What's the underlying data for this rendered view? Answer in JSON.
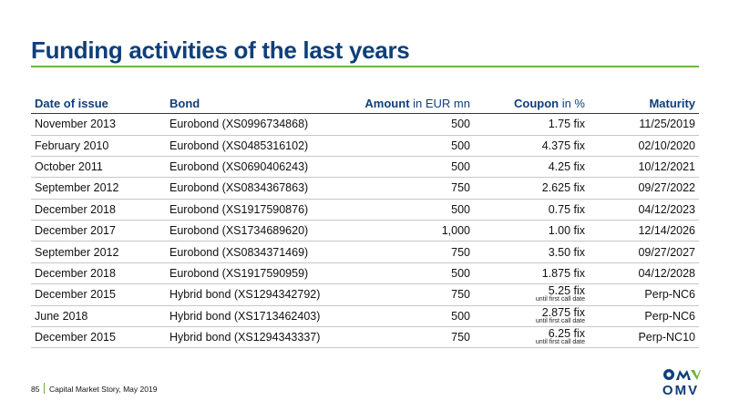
{
  "title": "Funding activities of the last years",
  "headers": {
    "date": "Date of issue",
    "bond": "Bond",
    "amount": "Amount",
    "amount_unit": " in EUR mn",
    "coupon": "Coupon",
    "coupon_unit": " in %",
    "maturity": "Maturity"
  },
  "rows": [
    {
      "date": "November 2013",
      "bond": "Eurobond (XS0996734868)",
      "amount": "500",
      "coupon": "1.75 fix",
      "note": "",
      "maturity": "11/25/2019"
    },
    {
      "date": "February 2010",
      "bond": "Eurobond (XS0485316102)",
      "amount": "500",
      "coupon": "4.375 fix",
      "note": "",
      "maturity": "02/10/2020"
    },
    {
      "date": "October 2011",
      "bond": "Eurobond (XS0690406243)",
      "amount": "500",
      "coupon": "4.25 fix",
      "note": "",
      "maturity": "10/12/2021"
    },
    {
      "date": "September 2012",
      "bond": "Eurobond (XS0834367863)",
      "amount": "750",
      "coupon": "2.625 fix",
      "note": "",
      "maturity": "09/27/2022"
    },
    {
      "date": "December 2018",
      "bond": "Eurobond (XS1917590876)",
      "amount": "500",
      "coupon": "0.75 fix",
      "note": "",
      "maturity": "04/12/2023"
    },
    {
      "date": "December 2017",
      "bond": "Eurobond (XS1734689620)",
      "amount": "1,000",
      "coupon": "1.00 fix",
      "note": "",
      "maturity": "12/14/2026"
    },
    {
      "date": "September 2012",
      "bond": "Eurobond (XS0834371469)",
      "amount": "750",
      "coupon": "3.50 fix",
      "note": "",
      "maturity": "09/27/2027"
    },
    {
      "date": "December 2018",
      "bond": "Eurobond (XS1917590959)",
      "amount": "500",
      "coupon": "1.875 fix",
      "note": "",
      "maturity": "04/12/2028"
    },
    {
      "date": "December 2015",
      "bond": "Hybrid bond (XS1294342792)",
      "amount": "750",
      "coupon": "5.25 fix",
      "note": "until first call date",
      "maturity": "Perp-NC6"
    },
    {
      "date": "June 2018",
      "bond": "Hybrid bond (XS1713462403)",
      "amount": "500",
      "coupon": "2.875 fix",
      "note": "until first call date",
      "maturity": "Perp-NC6"
    },
    {
      "date": "December 2015",
      "bond": "Hybrid bond (XS1294343337)",
      "amount": "750",
      "coupon": "6.25 fix",
      "note": "until first call date",
      "maturity": "Perp-NC10"
    }
  ],
  "footer": {
    "page_number": "85",
    "text": "Capital Market Story, May 2019"
  },
  "logo": {
    "name": "omv-logo",
    "text": "OMV"
  },
  "colors": {
    "title": "#0f3f7a",
    "accent_rule": "#6cb33f",
    "row_divider": "#c7c7c7"
  }
}
